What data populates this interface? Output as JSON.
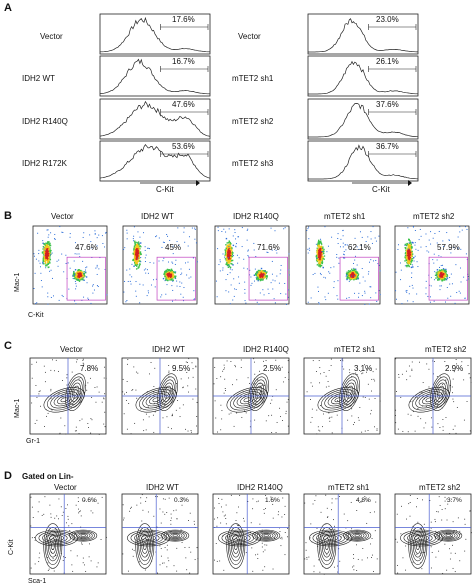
{
  "panels": {
    "A": {
      "letter": "A",
      "axis_label": "C-Kit",
      "left": [
        {
          "label": "Vector",
          "percent": "17.6%"
        },
        {
          "label": "IDH2 WT",
          "percent": "16.7%"
        },
        {
          "label": "IDH2 R140Q",
          "percent": "47.6%"
        },
        {
          "label": "IDH2 R172K",
          "percent": "53.6%"
        }
      ],
      "right": [
        {
          "label": "Vector",
          "percent": "23.0%"
        },
        {
          "label": "mTET2 sh1",
          "percent": "26.1%"
        },
        {
          "label": "mTET2 sh2",
          "percent": "37.6%"
        },
        {
          "label": "mTET2 sh3",
          "percent": "36.7%"
        }
      ]
    },
    "B": {
      "letter": "B",
      "y_label": "Mac-1",
      "x_label": "C-Kit",
      "plots": [
        {
          "title": "Vector",
          "percent": "47.6%"
        },
        {
          "title": "IDH2 WT",
          "percent": "45%"
        },
        {
          "title": "IDH2 R140Q",
          "percent": "71.6%"
        },
        {
          "title": "mTET2 sh1",
          "percent": "62.1%"
        },
        {
          "title": "mTET2 sh2",
          "percent": "57.9%"
        }
      ]
    },
    "C": {
      "letter": "C",
      "y_label": "Mac-1",
      "x_label": "Gr-1",
      "plots": [
        {
          "title": "Vector",
          "percent": "7.8%"
        },
        {
          "title": "IDH2 WT",
          "percent": "9.5%"
        },
        {
          "title": "IDH2 R140Q",
          "percent": "2.5%"
        },
        {
          "title": "mTET2 sh1",
          "percent": "3.1%"
        },
        {
          "title": "mTET2 sh2",
          "percent": "2.9%"
        }
      ]
    },
    "D": {
      "letter": "D",
      "subtitle": "Gated on Lin-",
      "y_label": "C-Kit",
      "x_label": "Sca-1",
      "plots": [
        {
          "title": "Vector",
          "percent": "0.6%"
        },
        {
          "title": "IDH2 WT",
          "percent": "0.3%"
        },
        {
          "title": "IDH2 R140Q",
          "percent": "1.6%"
        },
        {
          "title": "mTET2 sh1",
          "percent": "4.8%"
        },
        {
          "title": "mTET2 sh2",
          "percent": "3.7%"
        }
      ]
    }
  }
}
